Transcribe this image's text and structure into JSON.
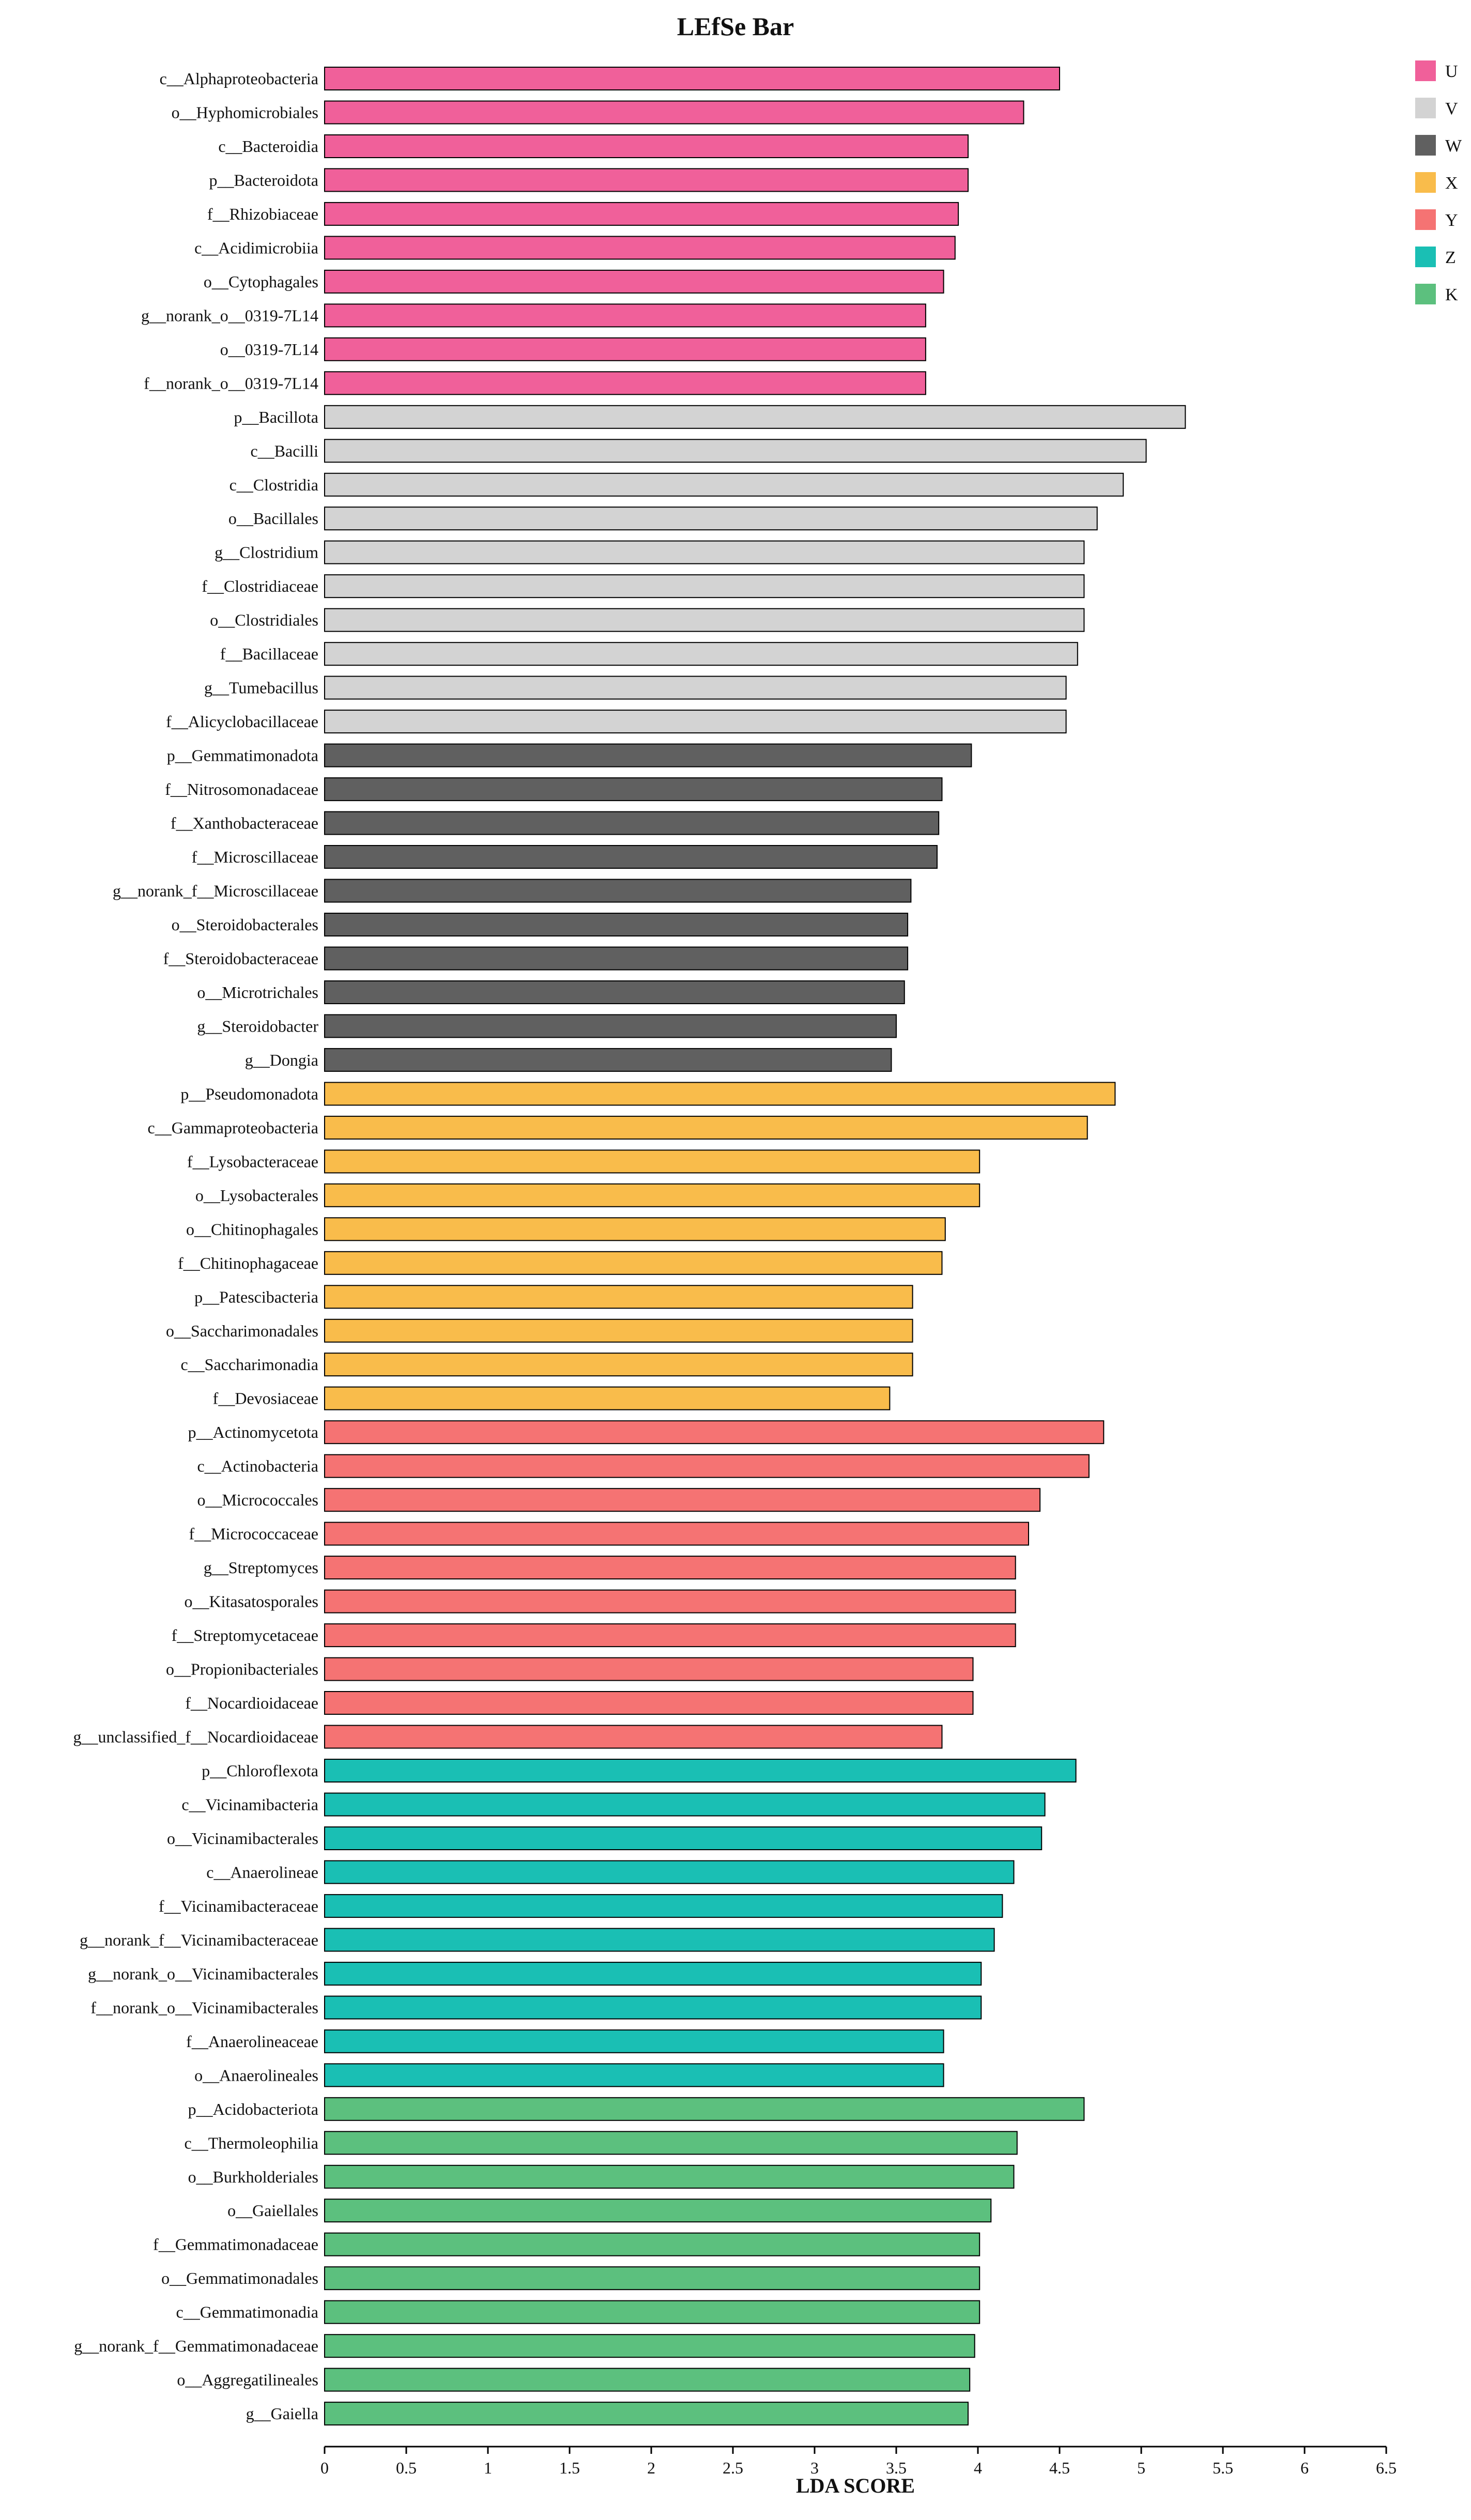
{
  "chart_data": {
    "type": "bar",
    "orientation": "horizontal",
    "title": "LEfSe Bar",
    "xlabel": "LDA SCORE",
    "ylabel": "",
    "xlim": [
      0,
      6.5
    ],
    "xticks": [
      "0",
      "0.5",
      "1",
      "1.5",
      "2",
      "2.5",
      "3",
      "3.5",
      "4",
      "4.5",
      "5",
      "5.5",
      "6",
      "6.5"
    ],
    "grid": false,
    "legend_position": "top-right",
    "groups": [
      {
        "name": "U",
        "color": "#F0609A",
        "items": [
          {
            "label": "c__Alphaproteobacteria",
            "value": 4.5
          },
          {
            "label": "o__Hyphomicrobiales",
            "value": 4.28
          },
          {
            "label": "c__Bacteroidia",
            "value": 3.94
          },
          {
            "label": "p__Bacteroidota",
            "value": 3.94
          },
          {
            "label": "f__Rhizobiaceae",
            "value": 3.88
          },
          {
            "label": "c__Acidimicrobiia",
            "value": 3.86
          },
          {
            "label": "o__Cytophagales",
            "value": 3.79
          },
          {
            "label": "g__norank_o__0319-7L14",
            "value": 3.68
          },
          {
            "label": "o__0319-7L14",
            "value": 3.68
          },
          {
            "label": "f__norank_o__0319-7L14",
            "value": 3.68
          }
        ]
      },
      {
        "name": "V",
        "color": "#D3D3D3",
        "items": [
          {
            "label": "p__Bacillota",
            "value": 5.27
          },
          {
            "label": "c__Bacilli",
            "value": 5.03
          },
          {
            "label": "c__Clostridia",
            "value": 4.89
          },
          {
            "label": "o__Bacillales",
            "value": 4.73
          },
          {
            "label": "g__Clostridium",
            "value": 4.65
          },
          {
            "label": "f__Clostridiaceae",
            "value": 4.65
          },
          {
            "label": "o__Clostridiales",
            "value": 4.65
          },
          {
            "label": "f__Bacillaceae",
            "value": 4.61
          },
          {
            "label": "g__Tumebacillus",
            "value": 4.54
          },
          {
            "label": "f__Alicyclobacillaceae",
            "value": 4.54
          }
        ]
      },
      {
        "name": "W",
        "color": "#606060",
        "items": [
          {
            "label": "p__Gemmatimonadota",
            "value": 3.96
          },
          {
            "label": "f__Nitrosomonadaceae",
            "value": 3.78
          },
          {
            "label": "f__Xanthobacteraceae",
            "value": 3.76
          },
          {
            "label": "f__Microscillaceae",
            "value": 3.75
          },
          {
            "label": "g__norank_f__Microscillaceae",
            "value": 3.59
          },
          {
            "label": "o__Steroidobacterales",
            "value": 3.57
          },
          {
            "label": "f__Steroidobacteraceae",
            "value": 3.57
          },
          {
            "label": "o__Microtrichales",
            "value": 3.55
          },
          {
            "label": "g__Steroidobacter",
            "value": 3.5
          },
          {
            "label": "g__Dongia",
            "value": 3.47
          }
        ]
      },
      {
        "name": "X",
        "color": "#F9BC4B",
        "items": [
          {
            "label": "p__Pseudomonadota",
            "value": 4.84
          },
          {
            "label": "c__Gammaproteobacteria",
            "value": 4.67
          },
          {
            "label": "f__Lysobacteraceae",
            "value": 4.01
          },
          {
            "label": "o__Lysobacterales",
            "value": 4.01
          },
          {
            "label": "o__Chitinophagales",
            "value": 3.8
          },
          {
            "label": "f__Chitinophagaceae",
            "value": 3.78
          },
          {
            "label": "p__Patescibacteria",
            "value": 3.6
          },
          {
            "label": "o__Saccharimonadales",
            "value": 3.6
          },
          {
            "label": "c__Saccharimonadia",
            "value": 3.6
          },
          {
            "label": "f__Devosiaceae",
            "value": 3.46
          }
        ]
      },
      {
        "name": "Y",
        "color": "#F57373",
        "items": [
          {
            "label": "p__Actinomycetota",
            "value": 4.77
          },
          {
            "label": "c__Actinobacteria",
            "value": 4.68
          },
          {
            "label": "o__Micrococcales",
            "value": 4.38
          },
          {
            "label": "f__Micrococcaceae",
            "value": 4.31
          },
          {
            "label": "g__Streptomyces",
            "value": 4.23
          },
          {
            "label": "o__Kitasatosporales",
            "value": 4.23
          },
          {
            "label": "f__Streptomycetaceae",
            "value": 4.23
          },
          {
            "label": "o__Propionibacteriales",
            "value": 3.97
          },
          {
            "label": "f__Nocardioidaceae",
            "value": 3.97
          },
          {
            "label": "g__unclassified_f__Nocardioidaceae",
            "value": 3.78
          }
        ]
      },
      {
        "name": "Z",
        "color": "#1ABFB4",
        "items": [
          {
            "label": "p__Chloroflexota",
            "value": 4.6
          },
          {
            "label": "c__Vicinamibacteria",
            "value": 4.41
          },
          {
            "label": "o__Vicinamibacterales",
            "value": 4.39
          },
          {
            "label": "c__Anaerolineae",
            "value": 4.22
          },
          {
            "label": "f__Vicinamibacteraceae",
            "value": 4.15
          },
          {
            "label": "g__norank_f__Vicinamibacteraceae",
            "value": 4.1
          },
          {
            "label": "g__norank_o__Vicinamibacterales",
            "value": 4.02
          },
          {
            "label": "f__norank_o__Vicinamibacterales",
            "value": 4.02
          },
          {
            "label": "f__Anaerolineaceae",
            "value": 3.79
          },
          {
            "label": "o__Anaerolineales",
            "value": 3.79
          }
        ]
      },
      {
        "name": "K",
        "color": "#5CC07E",
        "items": [
          {
            "label": "p__Acidobacteriota",
            "value": 4.65
          },
          {
            "label": "c__Thermoleophilia",
            "value": 4.24
          },
          {
            "label": "o__Burkholderiales",
            "value": 4.22
          },
          {
            "label": "o__Gaiellales",
            "value": 4.08
          },
          {
            "label": "f__Gemmatimonadaceae",
            "value": 4.01
          },
          {
            "label": "o__Gemmatimonadales",
            "value": 4.01
          },
          {
            "label": "c__Gemmatimonadia",
            "value": 4.01
          },
          {
            "label": "g__norank_f__Gemmatimonadaceae",
            "value": 3.98
          },
          {
            "label": "o__Aggregatilineales",
            "value": 3.95
          },
          {
            "label": "g__Gaiella",
            "value": 3.94
          }
        ]
      }
    ]
  }
}
